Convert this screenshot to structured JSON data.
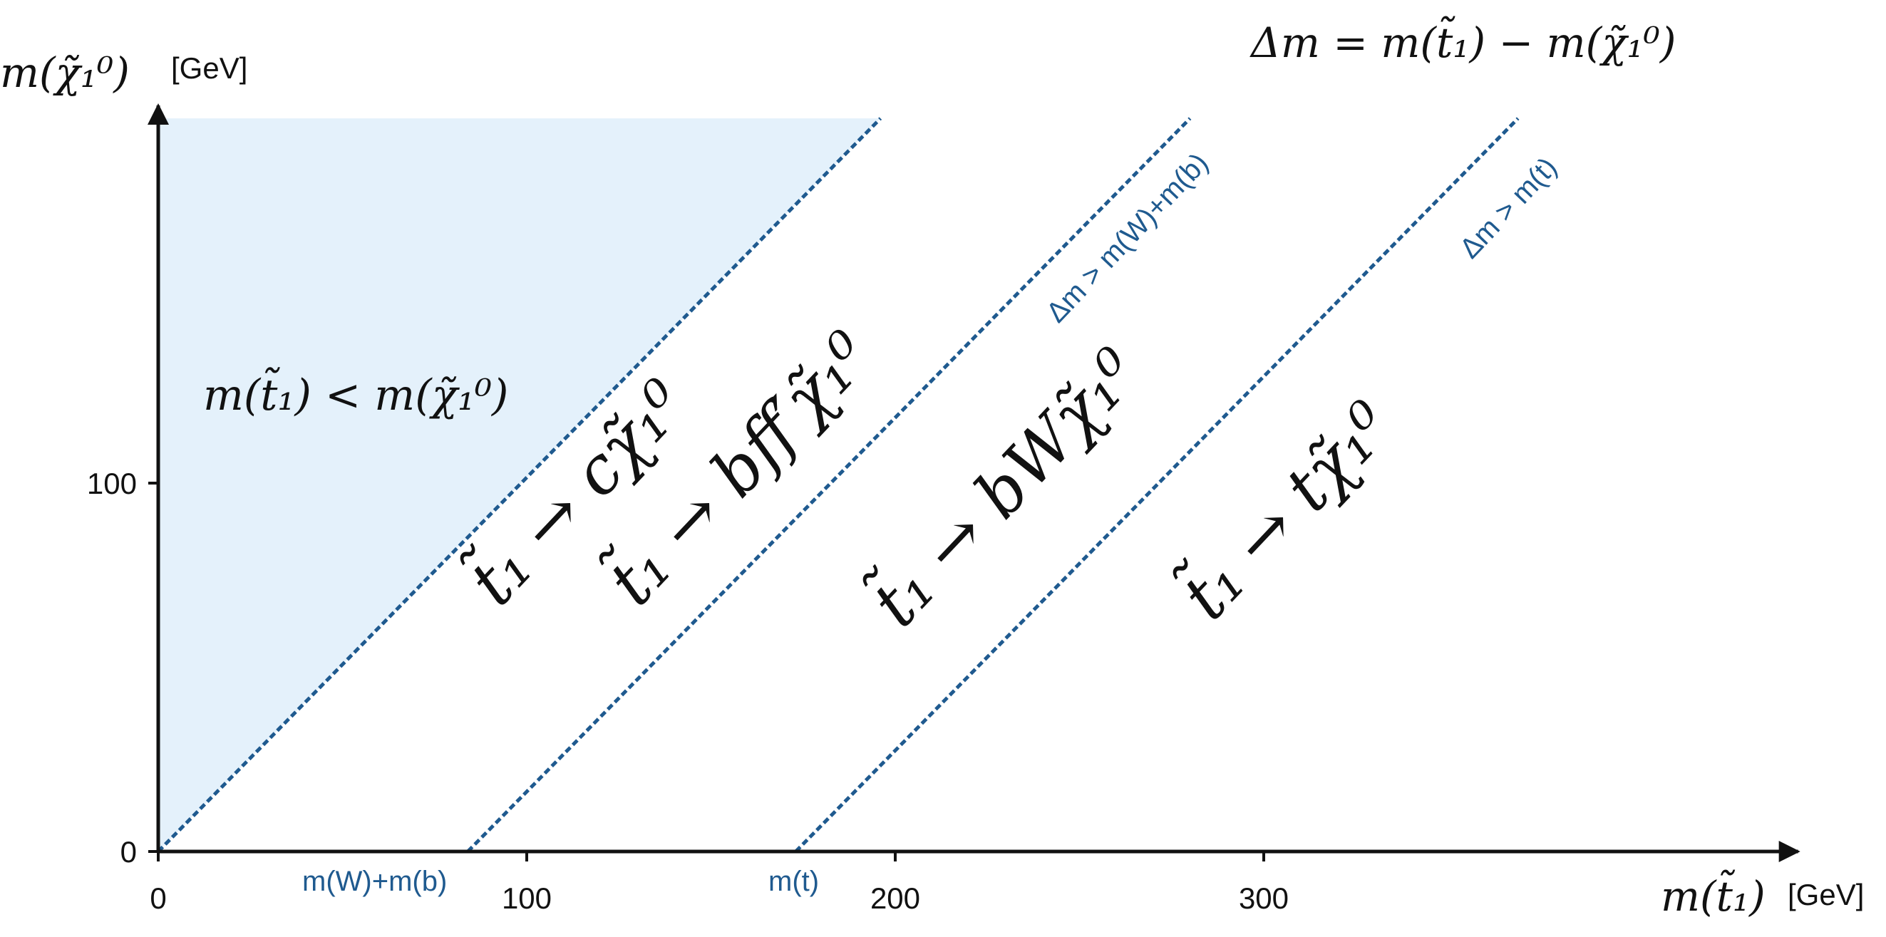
{
  "chart_data": {
    "type": "line",
    "title": "Δm = m(t̃₁) − m(χ̃₁⁰)",
    "xlabel": "m(t̃₁)",
    "xunit": "[GeV]",
    "ylabel": "m(χ̃₁⁰)",
    "yunit": "[GeV]",
    "xlim": [
      0,
      445
    ],
    "ylim": [
      0,
      199
    ],
    "xticks": [
      0,
      100,
      200,
      300
    ],
    "yticks": [
      0,
      100
    ],
    "grid": false,
    "series": [
      {
        "x": [
          0,
          196
        ],
        "y": [
          0,
          199
        ]
      },
      {
        "x": [
          84,
          280
        ],
        "y": [
          0,
          199
        ]
      },
      {
        "x": [
          173,
          369
        ],
        "y": [
          0,
          199
        ]
      }
    ],
    "shaded_region": {
      "polygon": [
        [
          0,
          0
        ],
        [
          0,
          199
        ],
        [
          196,
          199
        ]
      ]
    },
    "colors": {
      "boundary": "#1f5a8f",
      "shade": "#e4f1fb",
      "axis": "#111111"
    },
    "annotations": {
      "forbidden": "m(t̃₁) < m(χ̃₁⁰)",
      "region_c": "t̃₁ → cχ̃₁⁰",
      "region_bff": "t̃₁ → bff′χ̃₁⁰",
      "region_bW": "t̃₁ → bWχ̃₁⁰",
      "region_t": "t̃₁ → tχ̃₁⁰",
      "cond_bW": "Δm > m(W)+m(b)",
      "cond_t": "Δm > m(t)",
      "xmark_wb": "m(W)+m(b)",
      "xmark_t": "m(t)"
    }
  }
}
